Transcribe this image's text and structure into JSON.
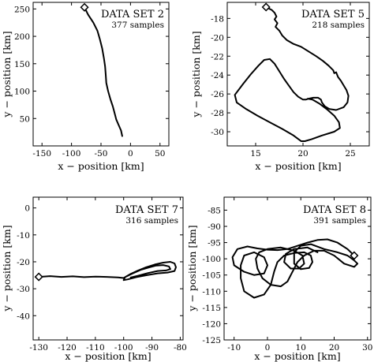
{
  "chart_data": [
    {
      "type": "line",
      "title": "DATA SET 2",
      "subtitle": "377 samples",
      "xlabel": "x − position [km]",
      "ylabel": "y − position [km]",
      "xlim": [
        -165,
        65
      ],
      "ylim": [
        0,
        262
      ],
      "xticks": [
        -150,
        -100,
        -50,
        0,
        50
      ],
      "yticks": [
        50,
        100,
        150,
        200,
        250
      ],
      "grid": false,
      "start_marker": "diamond",
      "series": [
        {
          "points": [
            [
              -78,
              253
            ],
            [
              -72,
              240
            ],
            [
              -63,
              225
            ],
            [
              -56,
              210
            ],
            [
              -52,
              195
            ],
            [
              -48,
              178
            ],
            [
              -45,
              160
            ],
            [
              -43,
              145
            ],
            [
              -42,
              130
            ],
            [
              -41,
              115
            ],
            [
              -38,
              100
            ],
            [
              -34,
              85
            ],
            [
              -30,
              72
            ],
            [
              -27,
              60
            ],
            [
              -24,
              48
            ],
            [
              -20,
              38
            ],
            [
              -16,
              28
            ],
            [
              -14,
              18
            ]
          ]
        }
      ]
    },
    {
      "type": "line",
      "title": "DATA SET 5",
      "subtitle": "218 samples",
      "xlabel": "x − position [km]",
      "ylabel": "y − position [km]",
      "xlim": [
        12,
        27
      ],
      "ylim": [
        -31.5,
        -16.3
      ],
      "xticks": [
        15,
        20,
        25
      ],
      "yticks": [
        -18,
        -20,
        -22,
        -24,
        -26,
        -28,
        -30
      ],
      "grid": false,
      "start_marker": "diamond",
      "series": [
        {
          "points": [
            [
              16.1,
              -16.8
            ],
            [
              16.7,
              -17.1
            ],
            [
              17.0,
              -17.4
            ],
            [
              17.2,
              -17.8
            ],
            [
              17.0,
              -18.1
            ],
            [
              17.3,
              -18.5
            ],
            [
              17.1,
              -18.9
            ],
            [
              17.5,
              -19.3
            ],
            [
              17.8,
              -19.8
            ],
            [
              18.3,
              -20.3
            ],
            [
              19.0,
              -20.7
            ],
            [
              19.8,
              -21.0
            ],
            [
              20.6,
              -21.5
            ],
            [
              21.4,
              -22.0
            ],
            [
              22.1,
              -22.5
            ],
            [
              22.7,
              -23.0
            ],
            [
              23.2,
              -23.5
            ],
            [
              23.3,
              -23.8
            ],
            [
              23.5,
              -23.7
            ],
            [
              23.7,
              -24.2
            ],
            [
              24.0,
              -24.6
            ],
            [
              24.3,
              -25.1
            ],
            [
              24.6,
              -25.6
            ],
            [
              24.8,
              -26.2
            ],
            [
              24.7,
              -26.9
            ],
            [
              24.3,
              -27.4
            ],
            [
              23.5,
              -27.7
            ],
            [
              22.8,
              -27.6
            ],
            [
              22.3,
              -27.3
            ],
            [
              22.0,
              -26.9
            ],
            [
              21.9,
              -26.6
            ],
            [
              21.6,
              -26.4
            ],
            [
              21.1,
              -26.4
            ],
            [
              20.6,
              -26.5
            ],
            [
              20.3,
              -26.6
            ],
            [
              20.0,
              -26.6
            ],
            [
              19.5,
              -26.3
            ],
            [
              19.0,
              -25.8
            ],
            [
              18.5,
              -25.1
            ],
            [
              18.0,
              -24.4
            ],
            [
              17.5,
              -23.6
            ],
            [
              17.0,
              -22.8
            ],
            [
              16.5,
              -22.3
            ],
            [
              15.9,
              -22.4
            ],
            [
              15.3,
              -23.0
            ],
            [
              14.5,
              -23.9
            ],
            [
              13.7,
              -24.9
            ],
            [
              12.8,
              -26.1
            ],
            [
              13.0,
              -26.9
            ],
            [
              14.0,
              -27.6
            ],
            [
              15.2,
              -28.3
            ],
            [
              16.5,
              -29.0
            ],
            [
              17.8,
              -29.7
            ],
            [
              19.0,
              -30.4
            ],
            [
              19.8,
              -31.0
            ],
            [
              20.2,
              -31.0
            ],
            [
              20.9,
              -30.8
            ],
            [
              22.0,
              -30.4
            ],
            [
              23.3,
              -30.0
            ],
            [
              23.9,
              -29.6
            ],
            [
              23.8,
              -29.0
            ],
            [
              23.3,
              -28.3
            ],
            [
              22.5,
              -27.6
            ],
            [
              21.7,
              -27.0
            ],
            [
              21.0,
              -26.6
            ],
            [
              20.5,
              -26.5
            ]
          ]
        }
      ]
    },
    {
      "type": "line",
      "title": "DATA SET 7",
      "subtitle": "316 samples",
      "xlabel": "x − position [km]",
      "ylabel": "y − position [km]",
      "xlim": [
        -132,
        -79
      ],
      "ylim": [
        -49,
        4
      ],
      "xticks": [
        -130,
        -120,
        -110,
        -100,
        -90,
        -80
      ],
      "yticks": [
        0,
        -10,
        -20,
        -30,
        -40
      ],
      "grid": false,
      "start_marker": "diamond",
      "series": [
        {
          "points": [
            [
              -130,
              -25.6
            ],
            [
              -126,
              -25.3
            ],
            [
              -122,
              -25.6
            ],
            [
              -118,
              -25.4
            ],
            [
              -114,
              -25.7
            ],
            [
              -110,
              -25.5
            ],
            [
              -106,
              -25.6
            ],
            [
              -102,
              -25.8
            ],
            [
              -100,
              -26.0
            ],
            [
              -99,
              -25.4
            ],
            [
              -97.5,
              -24.5
            ],
            [
              -95,
              -23.3
            ],
            [
              -92,
              -22.0
            ],
            [
              -89,
              -21.0
            ],
            [
              -86,
              -20.3
            ],
            [
              -83.5,
              -20.0
            ],
            [
              -82,
              -20.6
            ],
            [
              -81.5,
              -22.0
            ],
            [
              -82,
              -23.4
            ],
            [
              -84.5,
              -24.0
            ],
            [
              -88,
              -24.3
            ],
            [
              -92,
              -25.0
            ],
            [
              -95.5,
              -25.7
            ],
            [
              -98.5,
              -26.5
            ],
            [
              -100,
              -26.8
            ],
            [
              -99.5,
              -25.7
            ],
            [
              -97,
              -24.4
            ],
            [
              -94,
              -23.0
            ],
            [
              -91,
              -22.1
            ],
            [
              -88.5,
              -21.4
            ],
            [
              -86,
              -21.2
            ],
            [
              -84,
              -21.7
            ],
            [
              -83.5,
              -22.7
            ],
            [
              -85,
              -23.2
            ],
            [
              -88,
              -23.4
            ],
            [
              -91.5,
              -24.2
            ],
            [
              -95,
              -25.2
            ],
            [
              -97.5,
              -25.8
            ]
          ]
        }
      ]
    },
    {
      "type": "line",
      "title": "DATA SET 8",
      "subtitle": "391 samples",
      "xlabel": "x − position [km]",
      "ylabel": "y − position [km]",
      "xlim": [
        -13,
        31
      ],
      "ylim": [
        -125,
        -81
      ],
      "xticks": [
        -10,
        0,
        10,
        20,
        30
      ],
      "yticks": [
        -85,
        -90,
        -95,
        -100,
        -105,
        -110,
        -115,
        -120,
        -125
      ],
      "grid": false,
      "start_marker": "diamond",
      "series": [
        {
          "points": [
            [
              26,
              -99
            ],
            [
              24,
              -97
            ],
            [
              21,
              -95
            ],
            [
              18,
              -94
            ],
            [
              15,
              -94.2
            ],
            [
              12,
              -95
            ],
            [
              9,
              -96
            ],
            [
              6,
              -97
            ],
            [
              3,
              -97.3
            ],
            [
              0,
              -97.2
            ],
            [
              -3,
              -96.8
            ],
            [
              -6,
              -96.2
            ],
            [
              -9,
              -97
            ],
            [
              -10.5,
              -99.5
            ],
            [
              -10,
              -102
            ],
            [
              -7,
              -104
            ],
            [
              -4,
              -105
            ],
            [
              -1,
              -104.5
            ],
            [
              0,
              -102
            ],
            [
              -1,
              -99.5
            ],
            [
              -4,
              -98
            ],
            [
              -7,
              -99
            ],
            [
              -8,
              -102
            ],
            [
              -8,
              -106
            ],
            [
              -7,
              -110
            ],
            [
              -4,
              -112
            ],
            [
              -1,
              -111
            ],
            [
              1,
              -108
            ],
            [
              2,
              -104
            ],
            [
              3,
              -101
            ],
            [
              5,
              -99
            ],
            [
              8,
              -98.2
            ],
            [
              11,
              -98
            ],
            [
              13,
              -99
            ],
            [
              13.5,
              -101
            ],
            [
              12.5,
              -102.8
            ],
            [
              10,
              -103.2
            ],
            [
              8,
              -101.5
            ],
            [
              8,
              -98
            ],
            [
              10,
              -96
            ],
            [
              13,
              -95.5
            ],
            [
              17,
              -97
            ],
            [
              21,
              -98
            ],
            [
              24,
              -99
            ],
            [
              26,
              -100.5
            ],
            [
              27,
              -101.5
            ],
            [
              26,
              -102.5
            ],
            [
              23,
              -101.5
            ],
            [
              20,
              -99
            ],
            [
              17,
              -97.5
            ],
            [
              14,
              -97.5
            ],
            [
              11,
              -99
            ],
            [
              9,
              -101
            ],
            [
              7.5,
              -104
            ],
            [
              6,
              -107
            ],
            [
              4,
              -108.5
            ],
            [
              1,
              -108
            ],
            [
              -1.5,
              -106
            ],
            [
              -3,
              -103
            ],
            [
              -3.5,
              -100
            ],
            [
              -2.5,
              -98
            ],
            [
              0,
              -97
            ],
            [
              4,
              -96.5
            ],
            [
              8,
              -97.5
            ],
            [
              10.5,
              -99
            ],
            [
              11,
              -101.5
            ],
            [
              9.5,
              -103
            ],
            [
              7,
              -103
            ],
            [
              5,
              -101
            ],
            [
              5.5,
              -98.5
            ],
            [
              8,
              -97
            ],
            [
              12,
              -96.5
            ],
            [
              15,
              -98
            ]
          ]
        }
      ]
    }
  ]
}
